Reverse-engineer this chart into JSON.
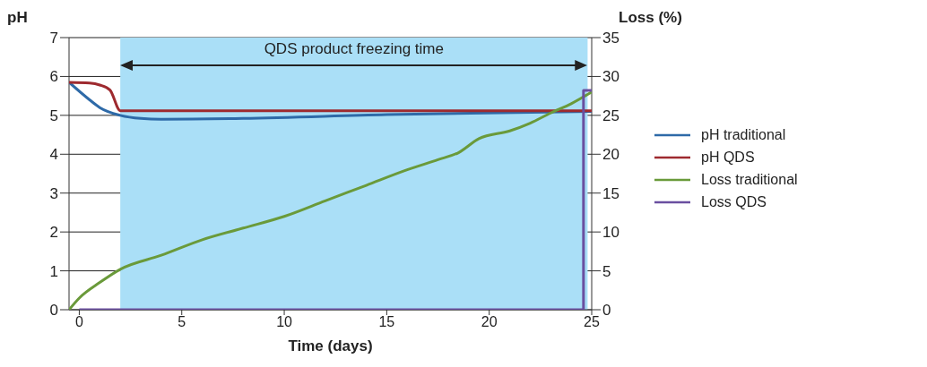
{
  "chart_data": {
    "type": "line",
    "xlabel": "Time (days)",
    "ylabel": "pH",
    "y2label": "Loss (%)",
    "xlim": [
      -0.5,
      25
    ],
    "xticks": [
      0,
      5,
      10,
      15,
      20,
      25
    ],
    "ylim": [
      0,
      7
    ],
    "yticks": [
      0,
      1,
      2,
      3,
      4,
      5,
      6,
      7
    ],
    "y2lim": [
      0,
      35
    ],
    "y2ticks": [
      0,
      5,
      10,
      15,
      20,
      25,
      30,
      35
    ],
    "grid": "y",
    "legend": "right",
    "marker": "none",
    "line_style": "solid",
    "bands": [
      {
        "axis": "x",
        "from": 2,
        "to": 24.8,
        "label": "QDS product freezing time",
        "color": "#aadff7"
      }
    ],
    "series": [
      {
        "name": "pH traditional",
        "color": "#2e6aa8",
        "x": [
          -0.5,
          0.5,
          1,
          2,
          3,
          4,
          8,
          15,
          25
        ],
        "values": [
          5.85,
          5.4,
          5.2,
          5.0,
          4.92,
          4.9,
          4.92,
          5.02,
          5.1
        ]
      },
      {
        "name": "pH QDS",
        "color": "#9e2a2f",
        "x": [
          -0.5,
          0.5,
          1,
          1.5,
          2,
          25
        ],
        "values": [
          5.85,
          5.83,
          5.78,
          5.65,
          5.12,
          5.12
        ]
      },
      {
        "name": "Loss traditional",
        "color": "#6a9a3a",
        "axis": "y2",
        "x": [
          -0.5,
          0,
          1,
          2,
          4,
          6,
          8,
          10,
          12,
          14,
          16,
          17.5,
          18.5,
          19.5,
          21,
          22,
          23,
          24,
          25
        ],
        "values": [
          0,
          1.5,
          3.5,
          5.2,
          7,
          9,
          10.5,
          12,
          14,
          16,
          18,
          19.3,
          20.2,
          22,
          23,
          24,
          25.3,
          26.5,
          28
        ]
      },
      {
        "name": "Loss QDS",
        "color": "#6a4fa0",
        "axis": "y2",
        "x": [
          0,
          24.6,
          24.6,
          25
        ],
        "values": [
          0,
          0,
          28.2,
          28.2
        ]
      }
    ]
  }
}
